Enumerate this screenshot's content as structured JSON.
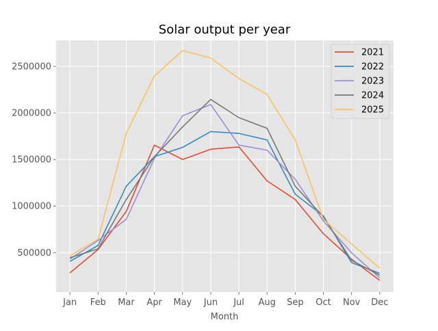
{
  "chart_data": {
    "type": "line",
    "title": "Solar output per year",
    "xlabel": "Month",
    "ylabel": "",
    "categories": [
      "Jan",
      "Feb",
      "Mar",
      "Apr",
      "May",
      "Jun",
      "Jul",
      "Aug",
      "Sep",
      "Oct",
      "Nov",
      "Dec"
    ],
    "ylim": [
      76000,
      2780000
    ],
    "yticks": [
      500000,
      1000000,
      1500000,
      2000000,
      2500000
    ],
    "ytick_labels": [
      "500000",
      "1000000",
      "1500000",
      "2000000",
      "2500000"
    ],
    "grid": true,
    "style": "ggplot",
    "legend_position": "top-right",
    "series": [
      {
        "name": "2021",
        "color": "#E24A33",
        "values": [
          282000,
          532000,
          943000,
          1654000,
          1500000,
          1610000,
          1635000,
          1270000,
          1070000,
          703000,
          429000,
          201000
        ]
      },
      {
        "name": "2022",
        "color": "#348ABD",
        "values": [
          405000,
          576000,
          1213000,
          1530000,
          1630000,
          1800000,
          1780000,
          1710000,
          1127000,
          894000,
          392000,
          277000
        ]
      },
      {
        "name": "2023",
        "color": "#988ED5",
        "values": [
          430000,
          630000,
          857000,
          1510000,
          1970000,
          2090000,
          1655000,
          1600000,
          1287000,
          840000,
          497000,
          228000
        ]
      },
      {
        "name": "2024",
        "color": "#777777",
        "values": [
          445000,
          540000,
          1070000,
          1530000,
          1850000,
          2145000,
          1950000,
          1835000,
          1213000,
          885000,
          416000,
          257000
        ]
      },
      {
        "name": "2025",
        "color": "#FBC15E",
        "values": [
          465000,
          644000,
          1780000,
          2397000,
          2670000,
          2590000,
          2370000,
          2200000,
          1710000,
          857000,
          593000,
          331000
        ]
      }
    ]
  }
}
